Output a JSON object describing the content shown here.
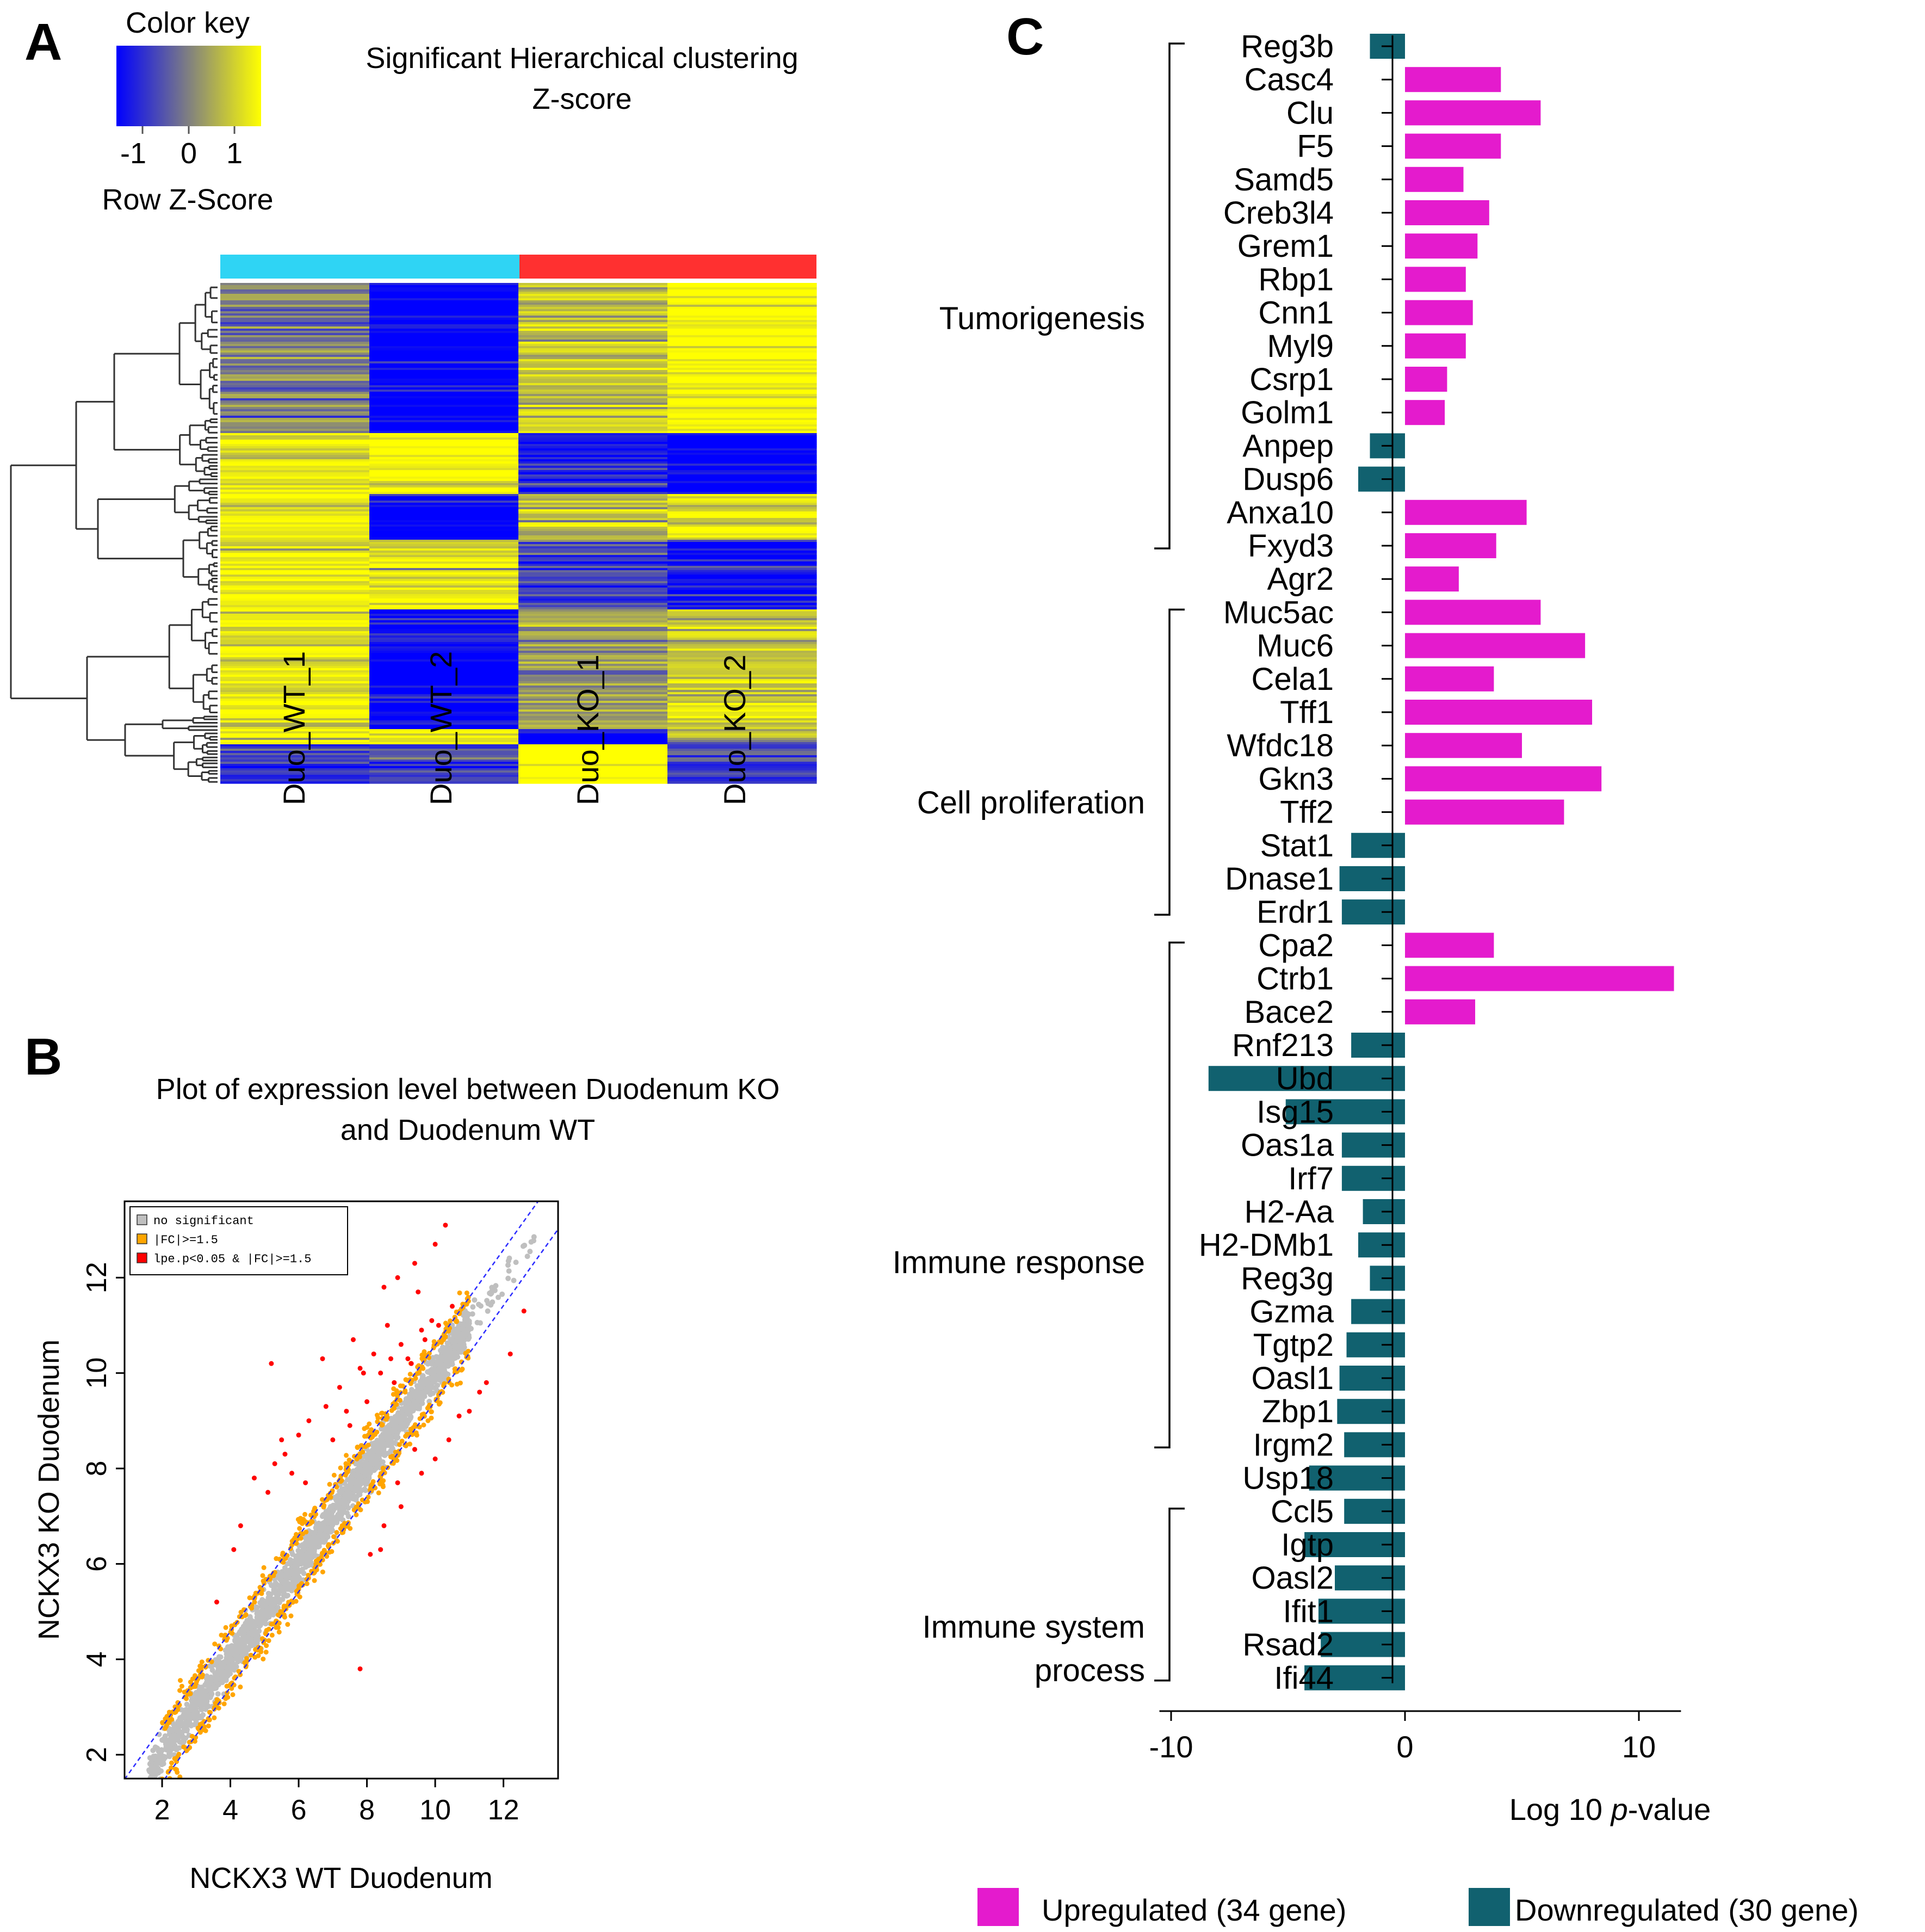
{
  "panel_labels": {
    "a": "A",
    "b": "B",
    "c": "C"
  },
  "panel_a": {
    "color_key_title": "Color key",
    "color_key_ticks": [
      "-1",
      "0",
      "1"
    ],
    "color_key_label": "Row Z-Score",
    "title_line1": "Significant Hierarchical clustering",
    "title_line2": "Z-score",
    "group_colors": {
      "wt": "#2fd4f4",
      "ko": "#ff3030"
    },
    "samples": [
      "Duo_WT_1",
      "Duo_WT_2",
      "Duo_KO_1",
      "Duo_KO_2"
    ],
    "colors": {
      "low": "#0000ff",
      "mid": "#808080",
      "high": "#ffff00"
    }
  },
  "panel_b": {
    "title_line1": "Plot of expression level between Duodenum KO",
    "title_line2": "and Duodenum WT",
    "xlabel": "NCKX3 WT Duodenum",
    "ylabel": "NCKX3 KO Duodenum",
    "xticks": [
      "2",
      "4",
      "6",
      "8",
      "10",
      "12"
    ],
    "yticks": [
      "2",
      "4",
      "6",
      "8",
      "10",
      "12"
    ],
    "legend": [
      "no significant",
      "|FC|>=1.5",
      "lpe.p<0.05 & |FC|>=1.5"
    ],
    "legend_colors": [
      "#bfbfbf",
      "#ffa500",
      "#ff0000"
    ]
  },
  "chart_data": [
    {
      "type": "heatmap",
      "title": "Significant Hierarchical clustering Z-score",
      "columns": [
        "Duo_WT_1",
        "Duo_WT_2",
        "Duo_KO_1",
        "Duo_KO_2"
      ],
      "groups": [
        {
          "name": "WT",
          "columns": [
            "Duo_WT_1",
            "Duo_WT_2"
          ]
        },
        {
          "name": "KO",
          "columns": [
            "Duo_KO_1",
            "Duo_KO_2"
          ]
        }
      ],
      "color_scale": {
        "min": -1,
        "center": 0,
        "max": 1,
        "label": "Row Z-Score"
      },
      "row_blocks": [
        {
          "fraction": 0.03,
          "z": [
            0.1,
            -1.2,
            0.8,
            1.2
          ]
        },
        {
          "fraction": 0.27,
          "z": [
            0.0,
            -1.4,
            0.6,
            1.2
          ]
        },
        {
          "fraction": 0.12,
          "z": [
            1.0,
            1.2,
            -0.9,
            -1.3
          ]
        },
        {
          "fraction": 0.09,
          "z": [
            1.0,
            -1.4,
            0.5,
            0.9
          ]
        },
        {
          "fraction": 0.14,
          "z": [
            1.1,
            1.0,
            -0.5,
            -1.1
          ]
        },
        {
          "fraction": 0.24,
          "z": [
            0.9,
            -1.3,
            0.3,
            0.7
          ]
        },
        {
          "fraction": 0.03,
          "z": [
            1.1,
            1.2,
            -1.3,
            0.1
          ]
        },
        {
          "fraction": 0.08,
          "z": [
            -0.6,
            -0.7,
            1.6,
            -0.6
          ]
        }
      ]
    },
    {
      "type": "scatter",
      "title": "Plot of expression level between Duodenum KO and Duodenum WT",
      "xlabel": "NCKX3 WT Duodenum",
      "ylabel": "NCKX3 KO Duodenum",
      "xlim": [
        0.9,
        13.6
      ],
      "ylim": [
        1.5,
        13.6
      ],
      "reference_lines": [
        {
          "slope": 1,
          "intercept": 0.585
        },
        {
          "slope": 1,
          "intercept": -0.585
        }
      ],
      "series": [
        {
          "name": "no significant",
          "approx_count": 2200,
          "description": "points along y=x, x from about 1.5 to 13.2"
        },
        {
          "name": "|FC|>=1.5",
          "approx_count": 650,
          "description": "points just outside the fold-change band, x from about 2 to 11"
        },
        {
          "name": "lpe.p<0.05 & |FC|>=1.5",
          "points": [
            [
              5.2,
              10.2
            ],
            [
              5.5,
              8.6
            ],
            [
              6.7,
              10.3
            ],
            [
              7.6,
              10.7
            ],
            [
              8.5,
              11.8
            ],
            [
              8.9,
              12.0
            ],
            [
              9.4,
              12.3
            ],
            [
              10.0,
              12.7
            ],
            [
              10.3,
              13.1
            ],
            [
              8.6,
              11.0
            ],
            [
              7.9,
              10.0
            ],
            [
              9.5,
              11.7
            ],
            [
              5.3,
              8.1
            ],
            [
              6.0,
              8.7
            ],
            [
              6.3,
              9.0
            ],
            [
              6.8,
              9.3
            ],
            [
              7.2,
              9.7
            ],
            [
              7.4,
              9.2
            ],
            [
              7.8,
              10.1
            ],
            [
              8.2,
              10.4
            ],
            [
              8.4,
              10.0
            ],
            [
              8.7,
              10.3
            ],
            [
              9.0,
              10.6
            ],
            [
              9.2,
              10.3
            ],
            [
              9.6,
              10.9
            ],
            [
              9.9,
              11.1
            ],
            [
              5.8,
              7.9
            ],
            [
              6.2,
              7.7
            ],
            [
              4.7,
              7.8
            ],
            [
              5.1,
              7.5
            ],
            [
              4.3,
              6.8
            ],
            [
              4.1,
              6.3
            ],
            [
              3.6,
              5.2
            ],
            [
              5.6,
              8.3
            ],
            [
              7.0,
              8.6
            ],
            [
              7.5,
              8.9
            ],
            [
              8.0,
              9.4
            ],
            [
              8.8,
              9.8
            ],
            [
              9.3,
              10.2
            ],
            [
              9.7,
              10.7
            ],
            [
              10.1,
              11.0
            ],
            [
              10.5,
              11.4
            ],
            [
              8.1,
              6.2
            ],
            [
              8.5,
              6.8
            ],
            [
              9.0,
              7.2
            ],
            [
              9.6,
              7.9
            ],
            [
              10.0,
              8.2
            ],
            [
              10.4,
              8.6
            ],
            [
              11.0,
              9.2
            ],
            [
              11.5,
              9.8
            ],
            [
              12.2,
              10.4
            ],
            [
              12.6,
              11.3
            ],
            [
              9.4,
              8.4
            ],
            [
              8.4,
              6.3
            ],
            [
              7.8,
              3.8
            ],
            [
              10.7,
              9.1
            ],
            [
              11.3,
              9.6
            ],
            [
              8.9,
              7.7
            ]
          ]
        }
      ]
    },
    {
      "type": "bar",
      "orientation": "horizontal",
      "xlabel_prefix": "Log 10 ",
      "xlabel_italic": "p",
      "xlabel_suffix": "-value",
      "xlim": [
        -10.5,
        11.8
      ],
      "xticks": [
        "-10",
        "0",
        "10"
      ],
      "colors": {
        "up": "#e41bcd",
        "down": "#11616f"
      },
      "legend": [
        "Upregulated (34 gene)",
        "Downregulated (30 gene)"
      ],
      "categories": [
        "Reg3b",
        "Casc4",
        "Clu",
        "F5",
        "Samd5",
        "Creb3l4",
        "Grem1",
        "Rbp1",
        "Cnn1",
        "Myl9",
        "Csrp1",
        "Golm1",
        "Anpep",
        "Dusp6",
        "Anxa10",
        "Fxyd3",
        "Agr2",
        "Muc5ac",
        "Muc6",
        "Cela1",
        "Tff1",
        "Wfdc18",
        "Gkn3",
        "Tff2",
        "Stat1",
        "Dnase1",
        "Erdr1",
        "Cpa2",
        "Ctrb1",
        "Bace2",
        "Rnf213",
        "Ubd",
        "Isg15",
        "Oas1a",
        "Irf7",
        "H2-Aa",
        "H2-DMb1",
        "Reg3g",
        "Gzma",
        "Tgtp2",
        "Oasl1",
        "Zbp1",
        "Irgm2",
        "Usp18",
        "Ccl5",
        "Igtp",
        "Oasl2",
        "Ifit1",
        "Rsad2",
        "Ifi44"
      ],
      "values": [
        -1.5,
        4.1,
        5.8,
        4.1,
        2.5,
        3.6,
        3.1,
        2.6,
        2.9,
        2.6,
        1.8,
        1.7,
        -1.5,
        -2.0,
        5.2,
        3.9,
        2.3,
        5.8,
        7.7,
        3.8,
        8.0,
        5.0,
        8.4,
        6.8,
        -2.3,
        -2.8,
        -2.7,
        3.8,
        11.5,
        3.0,
        -2.3,
        -8.4,
        -5.1,
        -2.7,
        -2.7,
        -1.8,
        -2.0,
        -1.5,
        -2.3,
        -2.5,
        -2.8,
        -2.9,
        -2.6,
        -4.1,
        -2.6,
        -4.3,
        -3.0,
        -3.7,
        -3.6,
        -4.3
      ],
      "groups": [
        {
          "name": "Tumorigenesis",
          "first": "Reg3b",
          "last": "Fxyd3"
        },
        {
          "name": "Cell proliferation",
          "first": "Muc5ac",
          "last": "Erdr1"
        },
        {
          "name": "Immune response",
          "first": "Cpa2",
          "last": "Irgm2"
        },
        {
          "name": "Immune system process",
          "first": "Ccl5",
          "last": "Ifi44"
        }
      ]
    }
  ],
  "panel_c": {
    "groups": [
      {
        "line1": "Tumorigenesis",
        "line2": ""
      },
      {
        "line1": "Cell proliferation",
        "line2": ""
      },
      {
        "line1": "Immune response",
        "line2": ""
      },
      {
        "line1": "Immune system",
        "line2": "process"
      }
    ]
  }
}
